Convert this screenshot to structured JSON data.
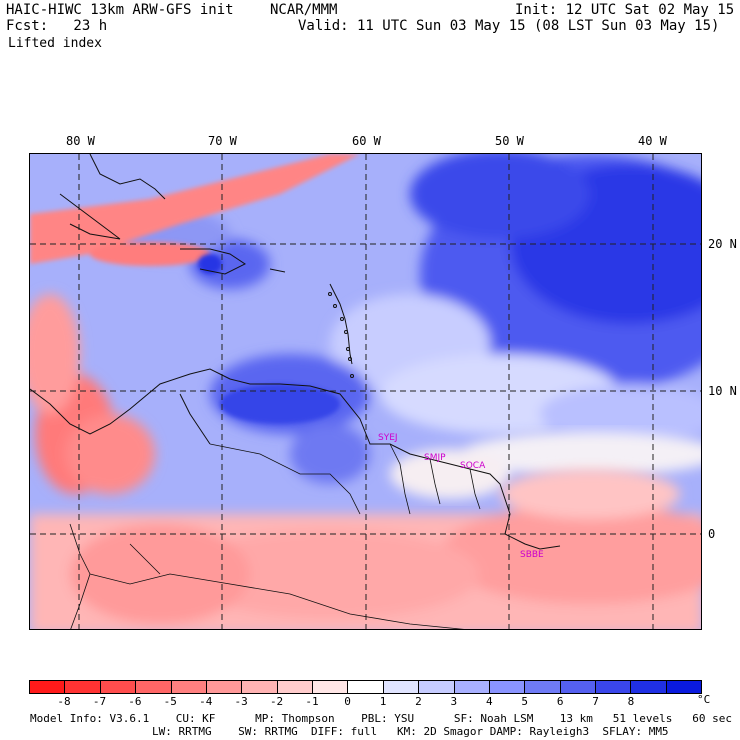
{
  "header": {
    "model": "HAIC-HIWC 13km ARW-GFS init",
    "agency": "NCAR/MMM",
    "init": "Init: 12 UTC Sat 02 May 15",
    "fcst": "Fcst:   23 h",
    "valid": "Valid: 11 UTC Sun 03 May 15 (08 LST Sun 03 May 15)",
    "field": "Lifted index"
  },
  "axes": {
    "lon_labels": [
      "80 W",
      "70 W",
      "60 W",
      "50 W",
      "40 W"
    ],
    "lat_labels": [
      "20 N",
      "10 N",
      "0"
    ]
  },
  "stations": [
    "SYEJ",
    "SMJP",
    "SOCA",
    "SBBE"
  ],
  "colorbar": {
    "labels": [
      "-8",
      "-7",
      "-6",
      "-5",
      "-4",
      "-3",
      "-2",
      "-1",
      "0",
      "1",
      "2",
      "3",
      "4",
      "5",
      "6",
      "7",
      "8"
    ],
    "unit": "°C",
    "colors": [
      "#ff1a1a",
      "#ff3333",
      "#ff4d4d",
      "#ff6666",
      "#ff8080",
      "#ff9999",
      "#ffb3b3",
      "#ffcccc",
      "#ffe6e6",
      "#ffffff",
      "#e0e4ff",
      "#c6ccff",
      "#a8b0ff",
      "#8a94ff",
      "#6f7bf6",
      "#5560f0",
      "#3a46ea",
      "#2030e4",
      "#0a1ade"
    ]
  },
  "model_info": {
    "line1": "Model Info: V3.6.1    CU: KF      MP: Thompson    PBL: YSU      SF: Noah LSM    13 km   51 levels   60 sec",
    "line2": "LW: RRTMG    SW: RRTMG  DIFF: full   KM: 2D Smagor DAMP: Rayleigh3  SFLAY: MM5"
  }
}
